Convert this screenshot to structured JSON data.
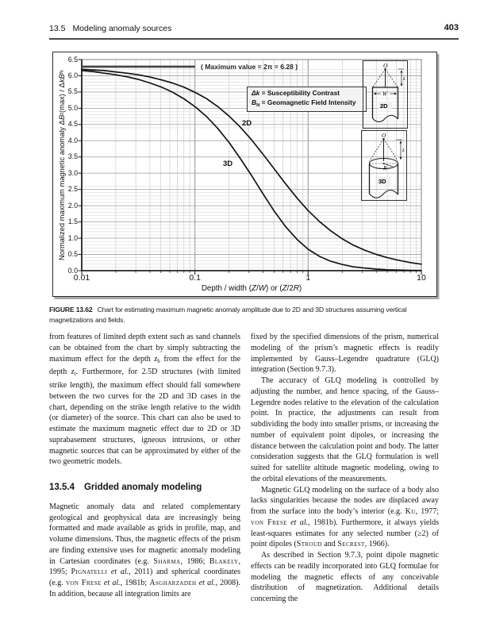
{
  "page": {
    "header": {
      "section": "13.5",
      "title": "Modeling anomaly sources",
      "page_number": "403"
    },
    "figure": {
      "caption_label": "FIGURE 13.62",
      "caption_text": "Chart for estimating maximum magnetic anomaly amplitude due to 2D and 3D structures assuming vertical magnetizations and fields.",
      "insets": [
        {
          "labels": {
            "origin": "O",
            "depth": "z",
            "width": "W",
            "name": "2D"
          }
        },
        {
          "labels": {
            "origin": "O",
            "depth": "z",
            "radius": "R",
            "name": "3D"
          }
        }
      ]
    },
    "columns": {
      "left": {
        "para1": "from features of limited depth extent such as sand channels can be obtained from the chart by simply subtracting the maximum effect for the depth [i]z[/i][sub]b[/sub] from the effect for the depth [i]z[/i][sub]t[/sub]. Furthermore, for 2.5D structures (with limited strike length), the maximum effect should fall somewhere between the two curves for the 2D and 3D cases in the chart, depending on the strike length relative to the width (or diameter) of the source. This chart can also be used to estimate the maximum magnetic effect due to 2D or 3D suprabasement structures, igneous intrusions, or other magnetic sources that can be approximated by either of the two geometric models.",
        "heading_number": "13.5.4",
        "heading_title": "Gridded anomaly modeling",
        "para2": "Magnetic anomaly data and related complementary geological and geophysical data are increasingly being formatted and made available as grids in profile, map, and volume dimensions. Thus, the magnetic effects of the prism are finding extensive uses for magnetic anomaly modeling in Cartesian coordinates (e.g. [sc]Sharma[/sc], 1986; [sc]Blakely[/sc], 1995; [sc]Pignatelli[/sc] [i]et al.[/i], 2011) and spherical coordinates (e.g. [sc]von Frese[/sc] [i]et al.[/i], 1981b; [sc]Asgharzadeh[/sc] [i]et al.[/i], 2008). In addition, because all integration limits are"
      },
      "right": {
        "para1": "fixed by the specified dimensions of the prism, numerical modeling of the prism’s magnetic effects is readily implemented by Gauss–Legendre quadrature (GLQ) integration (Section 9.7.3).",
        "para2": "The accuracy of GLQ modeling is controlled by adjusting the number, and hence spacing, of the Gauss–Legendre nodes relative to the elevation of the calculation point. In practice, the adjustments can result from subdividing the body into smaller prisms, or increasing the number of equivalent point dipoles, or increasing the distance between the calculation point and body. The latter consideration suggests that the GLQ formulation is well suited for satellite altitude magnetic modeling, owing to the orbital elevations of the measurements.",
        "para3": "Magnetic GLQ modeling on the surface of a body also lacks singularities because the nodes are displaced away from the surface into the body’s interior (e.g. [sc]Ku[/sc], 1977; [sc]von Frese[/sc] [i]et al.[/i], 1981b). Furthermore, it always yields least-squares estimates for any selected number (≥2) of point dipoles ([sc]Stroud[/sc] and [sc]Secrest[/sc], 1966).",
        "para4": "As described in Section 9.7.3, point dipole magnetic effects can be readily incorporated into GLQ formulae for modeling the magnetic effects of any conceivable distribution of magnetization. Additional details concerning the"
      }
    }
  },
  "chart_data": {
    "type": "line",
    "xlabel_rich": "Depth / width ([i]Z[/i]/[i]W[/i]) or ([i]Z[/i]/2[i]R[/i])",
    "ylabel_rich": "Normalized maximum magnetic anomaly Δ[i]B[/i][sub]z[/sub] (max) / Δ[i]kB[/i][sub]N[/sub]",
    "x_scale": "log",
    "xlim": [
      0.01,
      10
    ],
    "ylim": [
      0,
      6.5
    ],
    "x_ticks": [
      0.01,
      0.1,
      1,
      10
    ],
    "x_tick_labels": [
      "0.01",
      "0.1",
      "1",
      "10"
    ],
    "y_tick_step": 0.5,
    "y_tick_labels": [
      "0.0",
      "0.5",
      "1.0",
      "1.5",
      "2.0",
      "2.5",
      "3.0",
      "3.5",
      "4.0",
      "4.5",
      "5.0",
      "5.5",
      "6.0",
      "6.5"
    ],
    "annotation": "( Maximum value = 2π = 6.28 )",
    "max_value": 6.28,
    "legend_lines": [
      "[i]Δk[/i] = Susceptibility Contrast",
      "[i]B[/i][sub]N[/sub] = Geomagnetic Field Intensity"
    ],
    "grid": true,
    "legend_position": "upper-middle",
    "series": [
      {
        "name": "2D",
        "x": [
          0.01,
          0.0126,
          0.0158,
          0.02,
          0.025,
          0.0316,
          0.04,
          0.05,
          0.063,
          0.08,
          0.1,
          0.126,
          0.158,
          0.2,
          0.25,
          0.316,
          0.4,
          0.5,
          0.63,
          0.8,
          1.0,
          1.26,
          1.58,
          2.0,
          2.5,
          3.16,
          4.0,
          5.0,
          6.3,
          8.0,
          10.0
        ],
        "y": [
          6.2,
          6.18,
          6.16,
          6.12,
          6.08,
          6.03,
          5.96,
          5.88,
          5.78,
          5.65,
          5.49,
          5.3,
          5.06,
          4.76,
          4.43,
          4.03,
          3.58,
          3.14,
          2.68,
          2.23,
          1.85,
          1.51,
          1.23,
          0.98,
          0.79,
          0.63,
          0.5,
          0.4,
          0.32,
          0.25,
          0.2
        ]
      },
      {
        "name": "3D",
        "x": [
          0.01,
          0.0126,
          0.0158,
          0.02,
          0.025,
          0.0316,
          0.04,
          0.05,
          0.063,
          0.08,
          0.1,
          0.126,
          0.158,
          0.2,
          0.25,
          0.316,
          0.4,
          0.5,
          0.63,
          0.8,
          1.0,
          1.26,
          1.58,
          2.0,
          2.5,
          3.16,
          4.0,
          5.0,
          6.3,
          8.0,
          10.0
        ],
        "y": [
          6.16,
          6.13,
          6.08,
          6.03,
          5.97,
          5.89,
          5.78,
          5.66,
          5.5,
          5.29,
          5.05,
          4.75,
          4.39,
          3.95,
          3.47,
          2.93,
          2.36,
          1.84,
          1.36,
          0.96,
          0.66,
          0.44,
          0.29,
          0.19,
          0.12,
          0.08,
          0.05,
          0.03,
          0.02,
          0.01,
          0.008
        ]
      }
    ]
  }
}
